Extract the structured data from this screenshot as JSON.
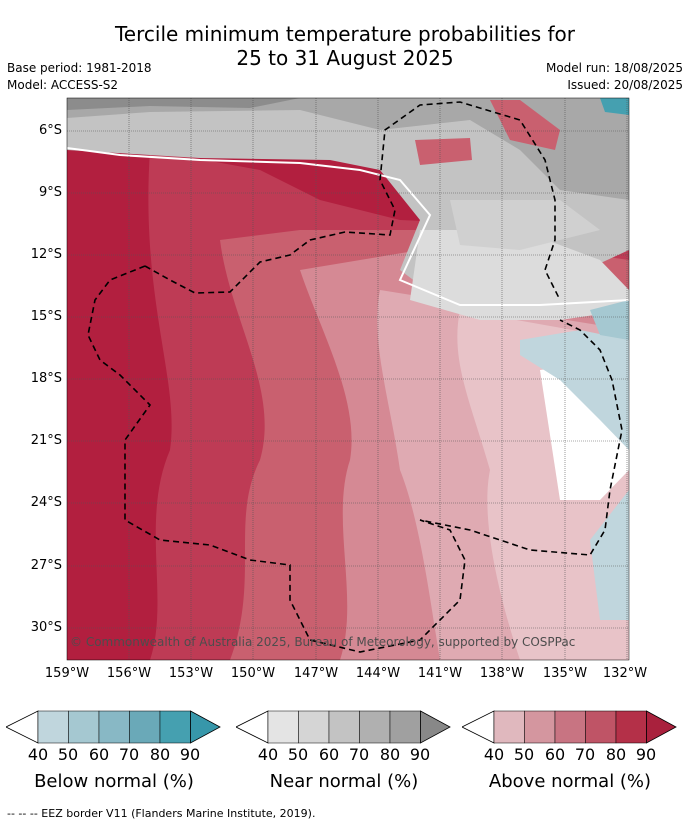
{
  "title_line1": "Tercile minimum temperature probabilities for",
  "title_line2": "25 to 31 August 2025",
  "meta": {
    "base_period": "Base period: 1981-2018",
    "model": "Model: ACCESS-S2",
    "model_run": "Model run: 18/08/2025",
    "issued": "Issued: 20/08/2025"
  },
  "map": {
    "lat_labels": [
      "6°S",
      "9°S",
      "12°S",
      "15°S",
      "18°S",
      "21°S",
      "24°S",
      "27°S",
      "30°S"
    ],
    "lon_labels": [
      "159°W",
      "156°W",
      "153°W",
      "150°W",
      "147°W",
      "144°W",
      "141°W",
      "138°W",
      "135°W",
      "132°W"
    ],
    "copyright": "© Commonwealth of Australia 2025, Bureau of Meteorology, supported by COSPPac"
  },
  "colorbars": [
    {
      "title": "Below normal (%)",
      "ticks": [
        "40",
        "50",
        "60",
        "70",
        "80",
        "90"
      ],
      "colors": [
        "#c0d6dd",
        "#a5c8d1",
        "#88b8c5",
        "#6aa9b8",
        "#45a0b0"
      ]
    },
    {
      "title": "Near normal (%)",
      "ticks": [
        "40",
        "50",
        "60",
        "70",
        "80",
        "90"
      ],
      "colors": [
        "#e4e4e4",
        "#d5d5d5",
        "#c3c3c3",
        "#b0b0b0",
        "#a0a0a0"
      ]
    },
    {
      "title": "Above normal (%)",
      "ticks": [
        "40",
        "50",
        "60",
        "70",
        "80",
        "90"
      ],
      "colors": [
        "#e0b8be",
        "#d4969f",
        "#c87482",
        "#bf5466",
        "#b43048"
      ]
    }
  ],
  "footer": "--  --  -- EEZ border V11 (Flanders Marine Institute, 2019)."
}
